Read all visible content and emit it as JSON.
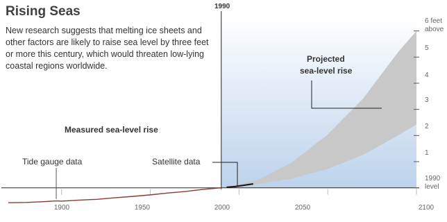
{
  "title": "Rising Seas",
  "subtitle": "New research suggests that melting ice sheets and other factors are likely to raise sea level by three feet or more this century, which would threaten low-lying coastal regions worldwide.",
  "chart_data": {
    "type": "area",
    "title": "Rising Seas",
    "xlim": [
      1870,
      2100
    ],
    "ylim": [
      -0.3,
      6.6
    ],
    "x_ticks": [
      "1900",
      "1950",
      "2000",
      "2050",
      "2100"
    ],
    "y_ticks": [
      {
        "value": 1,
        "label": "1"
      },
      {
        "value": 2,
        "label": "2"
      },
      {
        "value": 3,
        "label": "3"
      },
      {
        "value": 4,
        "label": "4"
      },
      {
        "value": 5,
        "label": "5"
      }
    ],
    "y_top_label": [
      "6 feet",
      "above"
    ],
    "y_baseline_label": [
      "1990",
      "level"
    ],
    "reference_year": "1990",
    "series": [
      {
        "name": "Tide gauge data",
        "color": "#8b3a2e",
        "x": [
          1870,
          1880,
          1890,
          1897,
          1900,
          1910,
          1920,
          1930,
          1940,
          1950,
          1960,
          1970,
          1980,
          1990
        ],
        "y": [
          -0.57,
          -0.56,
          -0.53,
          -0.5,
          -0.51,
          -0.47,
          -0.44,
          -0.38,
          -0.33,
          -0.27,
          -0.2,
          -0.14,
          -0.06,
          0.0
        ]
      },
      {
        "name": "Satellite data",
        "color": "#1a1a1a",
        "x": [
          1993,
          1998,
          2003,
          2008
        ],
        "y": [
          0.02,
          0.05,
          0.1,
          0.15
        ]
      },
      {
        "name": "Projected sea-level rise",
        "color": "#c8c8c8",
        "x": [
          1990,
          2010,
          2030,
          2050,
          2070,
          2090,
          2100
        ],
        "lower": [
          0.0,
          0.13,
          0.36,
          0.72,
          1.26,
          2.02,
          2.42
        ],
        "upper": [
          0.0,
          0.27,
          0.98,
          2.04,
          3.42,
          5.22,
          6.0
        ]
      }
    ],
    "annotations": {
      "projected": [
        "Projected",
        "sea-level rise"
      ],
      "measured": "Measured sea-level rise",
      "tide_gauge": "Tide gauge data",
      "satellite": "Satellite data"
    },
    "colors": {
      "future_background_top": "#ffffff",
      "future_background_bottom": "#bcd3ec",
      "projection_band": "#c8c8c8",
      "tide_line": "#8b3a2e",
      "axis": "#222222"
    }
  }
}
